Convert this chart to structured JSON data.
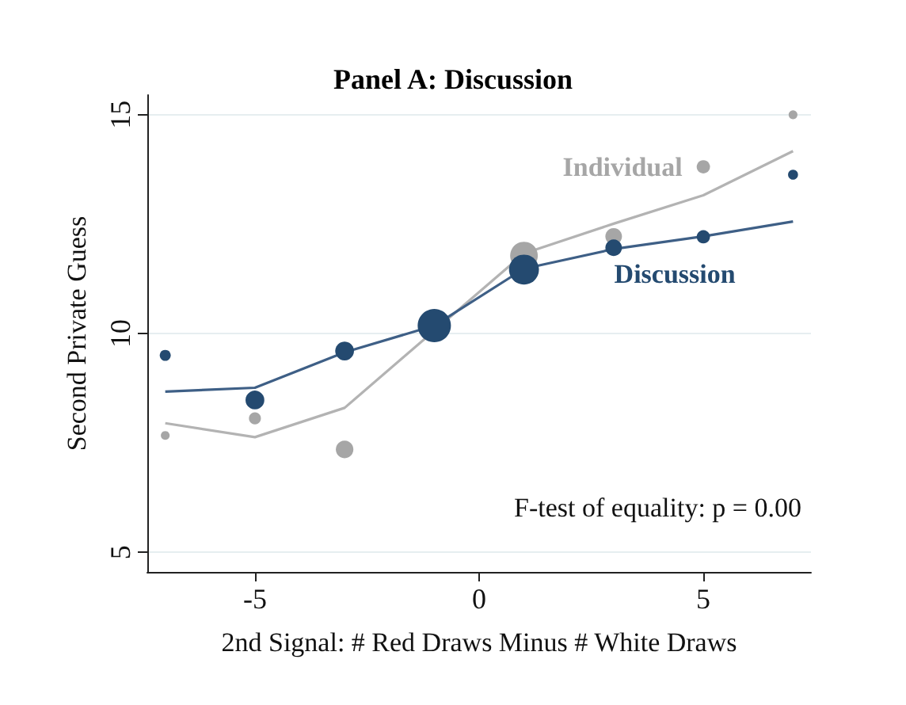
{
  "chart_data": {
    "type": "bubble",
    "title": "Panel A: Discussion",
    "xlabel": "2nd Signal: # Red Draws Minus # White Draws",
    "ylabel": "Second Private Guess",
    "annotations": [
      "F-test of equality: p = 0.00"
    ],
    "xlim": [
      -7.4,
      7.4
    ],
    "xticks": [
      -5,
      0,
      5
    ],
    "ylim": [
      4.55,
      15.45
    ],
    "yticks": [
      5,
      10,
      15
    ],
    "grid": "y",
    "series": [
      {
        "type": "line",
        "color": "#b3b3b3",
        "x": [
          -7,
          -5,
          -3,
          -1,
          1,
          3,
          5,
          7
        ],
        "values": [
          7.95,
          7.63,
          8.3,
          null,
          11.83,
          12.51,
          13.16,
          14.17
        ]
      },
      {
        "type": "line",
        "color": "#3e5f86",
        "x": [
          -7,
          -5,
          -3,
          -1,
          1,
          3,
          5,
          7
        ],
        "values": [
          8.67,
          8.76,
          9.57,
          10.18,
          11.48,
          11.93,
          12.22,
          12.56
        ]
      },
      {
        "name": "Individual",
        "color": "#a6a6a6",
        "x": [
          -7,
          -5,
          -3,
          -1,
          1,
          3,
          5,
          7
        ],
        "values": [
          7.67,
          8.06,
          7.35,
          null,
          11.78,
          12.22,
          13.81,
          15.0
        ],
        "sizes": [
          0.07,
          0.13,
          0.28,
          null,
          0.69,
          0.25,
          0.16,
          0.07
        ]
      },
      {
        "name": "Discussion",
        "color": "#244a70",
        "x": [
          -7,
          -5,
          -3,
          -1,
          1,
          3,
          5,
          7
        ],
        "values": [
          9.5,
          8.48,
          9.6,
          10.18,
          11.46,
          11.96,
          12.21,
          13.63
        ],
        "sizes": [
          0.11,
          0.32,
          0.32,
          1,
          0.81,
          0.25,
          0.16,
          0.09
        ]
      }
    ]
  }
}
